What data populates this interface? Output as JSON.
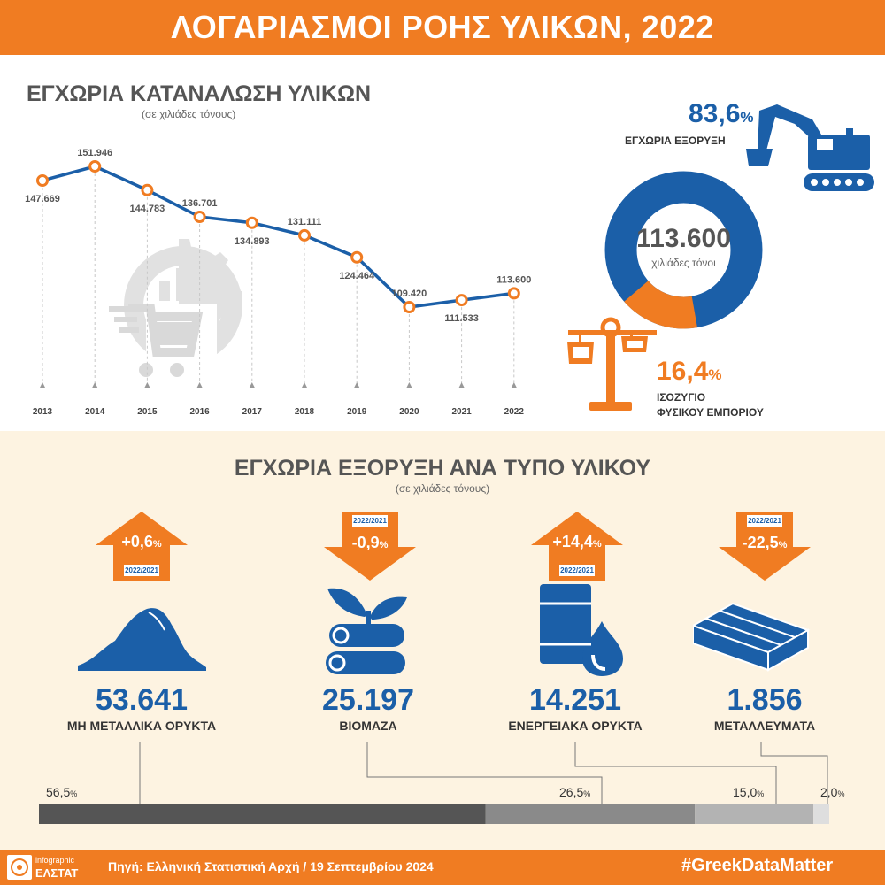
{
  "header": {
    "title": "ΛΟΓΑΡΙΑΣΜΟΙ ΡΟΗΣ ΥΛΙΚΩΝ, 2022"
  },
  "colors": {
    "orange": "#f07c22",
    "blue": "#1b5fa8",
    "grey_dark": "#555555",
    "cream": "#fdf3e1"
  },
  "consumption": {
    "title": "ΕΓΧΩΡΙΑ ΚΑΤΑΝΑΛΩΣΗ ΥΛΙΚΩΝ",
    "unit": "(σε χιλιάδες τόνους)"
  },
  "donut": {
    "center_value": "113.600",
    "center_unit": "χιλιάδες τόνοι",
    "extraction": {
      "pct": "83,6",
      "pct_sign": "%",
      "label": "ΕΓΧΩΡΙΑ ΕΞΟΡΥΞΗ"
    },
    "trade": {
      "pct": "16,4",
      "pct_sign": "%",
      "label_line1": "ΙΣΟΖΥΓΙΟ",
      "label_line2": "ΦΥΣΙΚΟΥ ΕΜΠΟΡΙΟΥ"
    }
  },
  "extraction_section": {
    "title": "ΕΓΧΩΡΙΑ ΕΞΟΡΥΞΗ ΑΝΑ ΤΥΠΟ ΥΛΙΚΟΥ",
    "unit": "(σε χιλιάδες τόνους)"
  },
  "materials": [
    {
      "value": "53.641",
      "label": "ΜΗ ΜΕΤΑΛΛΙΚΑ ΟΡΥΚΤΑ",
      "change": "+0,6",
      "change_sign": "%",
      "period": "2022/2021",
      "direction": "up",
      "share": "56,5",
      "share_sign": "%",
      "icon": "soil-pile-icon"
    },
    {
      "value": "25.197",
      "label": "ΒΙΟΜΑΖΑ",
      "change": "-0,9",
      "change_sign": "%",
      "period": "2022/2021",
      "direction": "down",
      "share": "26,5",
      "share_sign": "%",
      "icon": "logs-sprout-icon"
    },
    {
      "value": "14.251",
      "label": "ΕΝΕΡΓΕΙΑΚΑ ΟΡΥΚΤΑ",
      "change": "+14,4",
      "change_sign": "%",
      "period": "2022/2021",
      "direction": "up",
      "share": "15,0",
      "share_sign": "%",
      "icon": "oil-barrel-icon"
    },
    {
      "value": "1.856",
      "label": "ΜΕΤΑΛΛΕΥΜΑΤΑ",
      "change": "-22,5",
      "change_sign": "%",
      "period": "2022/2021",
      "direction": "down",
      "share": "2,0",
      "share_sign": "%",
      "icon": "metal-bars-icon"
    }
  ],
  "footer": {
    "logo_line1": "infographic",
    "logo_line2": "ΕΛΣΤΑΤ",
    "source": "Πηγή: Ελληνική Στατιστική Αρχή  / 19 Σεπτεμβρίου 2024",
    "hashtag": "#GreekDataMatter"
  },
  "chart_data": [
    {
      "type": "line",
      "categories": [
        "2013",
        "2014",
        "2015",
        "2016",
        "2017",
        "2018",
        "2019",
        "2020",
        "2021",
        "2022"
      ],
      "values": [
        147669,
        151946,
        144783,
        136701,
        134893,
        131111,
        124464,
        109420,
        111533,
        113600
      ],
      "labels": [
        "147.669",
        "151.946",
        "144.783",
        "136.701",
        "134.893",
        "131.111",
        "124.464",
        "109.420",
        "111.533",
        "113.600"
      ],
      "title": "ΕΓΧΩΡΙΑ ΚΑΤΑΝΑΛΩΣΗ ΥΛΙΚΩΝ",
      "ylim": [
        100000,
        155000
      ],
      "grid": false
    },
    {
      "type": "pie",
      "labels": [
        "ΕΓΧΩΡΙΑ ΕΞΟΡΥΞΗ",
        "ΙΣΟΖΥΓΙΟ ΦΥΣΙΚΟΥ ΕΜΠΟΡΙΟΥ"
      ],
      "values": [
        83.6,
        16.4
      ],
      "colors": [
        "#1b5fa8",
        "#f07c22"
      ]
    },
    {
      "type": "bar",
      "categories": [
        "ΜΗ ΜΕΤΑΛΛΙΚΑ ΟΡΥΚΤΑ",
        "ΒΙΟΜΑΖΑ",
        "ΕΝΕΡΓΕΙΑΚΑ ΟΡΥΚΤΑ",
        "ΜΕΤΑΛΛΕΥΜΑΤΑ"
      ],
      "values": [
        56.5,
        26.5,
        15.0,
        2.0
      ],
      "colors": [
        "#555555",
        "#8a8a8a",
        "#b3b3b3",
        "#dedede"
      ]
    }
  ]
}
